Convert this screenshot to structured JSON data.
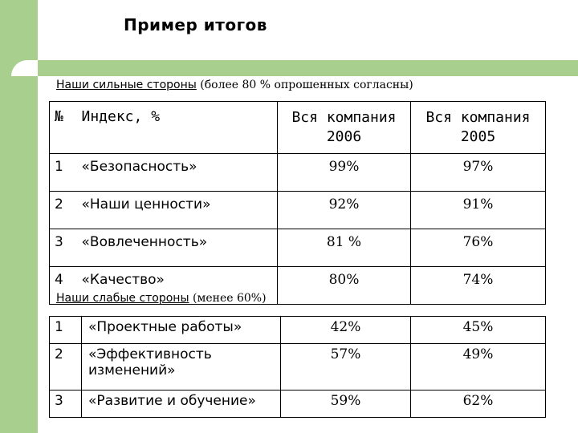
{
  "slide": {
    "title": "Пример итогов"
  },
  "strengths": {
    "heading": "Наши сильные стороны",
    "note": "(более 80 % опрошенных согласны)",
    "columns": [
      "№",
      "Индекс, %",
      "Вся компания 2006",
      "Вся компания 2005"
    ],
    "rows": [
      {
        "num": "1",
        "name": "«Безопасность»",
        "y2006": "99%",
        "y2005": "97%"
      },
      {
        "num": "2",
        "name": "«Наши ценности»",
        "y2006": "92%",
        "y2005": "91%"
      },
      {
        "num": "3",
        "name": "«Вовлеченность»",
        "y2006": "81 %",
        "y2005": "76%"
      },
      {
        "num": "4",
        "name": "«Качество»",
        "y2006": "80%",
        "y2005": "74%"
      }
    ]
  },
  "weaknesses": {
    "heading": "Наши слабые стороны",
    "note": "(менее 60%)",
    "rows": [
      {
        "num": "1",
        "name": "«Проектные работы»",
        "y2006": "42%",
        "y2005": "45%"
      },
      {
        "num": "2",
        "name": "«Эффективность изменений»",
        "y2006": "57%",
        "y2005": "49%"
      },
      {
        "num": "3",
        "name": "«Развитие и обучение»",
        "y2006": "59%",
        "y2005": "62%"
      }
    ]
  },
  "colors": {
    "accent_green": "#a9cf8e"
  }
}
